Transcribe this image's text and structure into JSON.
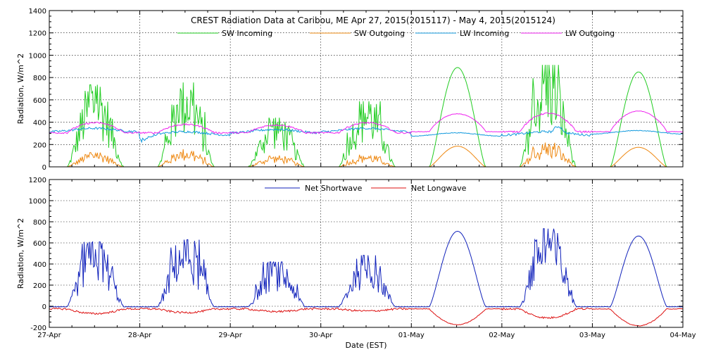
{
  "chart_data": [
    {
      "type": "line",
      "title": "CREST Radiation Data at Caribou, ME   Apr 27, 2015(2015117) - May  4, 2015(2015124)",
      "ylabel": "Radiation, W/m^2",
      "xlabel": "",
      "ylim": [
        0,
        1400
      ],
      "yticks": [
        0,
        200,
        400,
        600,
        800,
        1000,
        1200,
        1400
      ],
      "xlim": [
        0,
        7
      ],
      "xtick_labels": [
        "27-Apr",
        "28-Apr",
        "29-Apr",
        "30-Apr",
        "01-May",
        "02-May",
        "03-May",
        "04-May"
      ],
      "grid": true,
      "legend": "top",
      "series": [
        {
          "name": "SW Incoming",
          "color": "#22cc22",
          "daily_peaks": [
            700,
            720,
            420,
            560,
            890,
            870,
            850
          ]
        },
        {
          "name": "SW Outgoing",
          "color": "#ee8811",
          "daily_peaks": [
            120,
            140,
            90,
            95,
            185,
            190,
            175
          ]
        },
        {
          "name": "LW Incoming",
          "color": "#1199dd",
          "daily_means": [
            330,
            300,
            320,
            330,
            290,
            300,
            310
          ]
        },
        {
          "name": "LW Outgoing",
          "color": "#ee22ee",
          "daily_peaks": [
            395,
            380,
            375,
            395,
            475,
            480,
            500
          ]
        }
      ]
    },
    {
      "type": "line",
      "title": "",
      "ylabel": "Radiation, W/m^2",
      "xlabel": "Date (EST)",
      "ylim": [
        -200,
        1200
      ],
      "yticks": [
        -200,
        0,
        200,
        400,
        600,
        800,
        1000,
        1200
      ],
      "xlim": [
        0,
        7
      ],
      "xtick_labels": [
        "27-Apr",
        "28-Apr",
        "29-Apr",
        "30-Apr",
        "01-May",
        "02-May",
        "03-May",
        "04-May"
      ],
      "grid": true,
      "legend": "top",
      "series": [
        {
          "name": "Net Shortwave",
          "color": "#1122bb",
          "daily_peaks": [
            580,
            600,
            400,
            460,
            710,
            700,
            665
          ]
        },
        {
          "name": "Net Longwave",
          "color": "#dd1111",
          "daily_minima": [
            -70,
            -60,
            -50,
            -45,
            -175,
            -110,
            -185
          ]
        }
      ]
    }
  ]
}
